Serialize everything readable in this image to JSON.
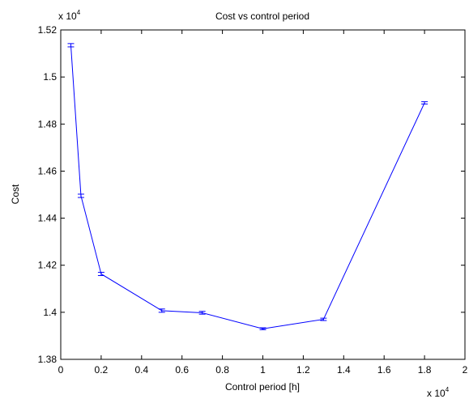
{
  "chart_data": {
    "type": "line",
    "title": "Cost vs control period",
    "xlabel": "Control period [h]",
    "ylabel": "Cost",
    "x_multiplier": {
      "base": "x 10",
      "exponent": "4"
    },
    "y_multiplier": {
      "base": "x 10",
      "exponent": "4"
    },
    "xlim": [
      0,
      2
    ],
    "ylim": [
      1.38,
      1.52
    ],
    "x_ticks": [
      0,
      0.2,
      0.4,
      0.6,
      0.8,
      1,
      1.2,
      1.4,
      1.6,
      1.8,
      2
    ],
    "x_tick_labels": [
      "0",
      "0.2",
      "0.4",
      "0.6",
      "0.8",
      "1",
      "1.2",
      "1.4",
      "1.6",
      "1.8",
      "2"
    ],
    "y_ticks": [
      1.38,
      1.4,
      1.42,
      1.44,
      1.46,
      1.48,
      1.5,
      1.52
    ],
    "y_tick_labels": [
      "1.38",
      "1.4",
      "1.42",
      "1.44",
      "1.46",
      "1.48",
      "1.5",
      "1.52"
    ],
    "grid": false,
    "series": [
      {
        "color": "#0000ff",
        "x": [
          0.05,
          0.1,
          0.2,
          0.5,
          0.7,
          1.0,
          1.3,
          1.8
        ],
        "y": [
          1.5135,
          1.4495,
          1.4163,
          1.4007,
          1.3998,
          1.393,
          1.397,
          1.489
        ],
        "error": [
          0.0007,
          0.0007,
          0.0007,
          0.0007,
          0.0006,
          0.0004,
          0.0005,
          0.0005
        ]
      }
    ]
  }
}
